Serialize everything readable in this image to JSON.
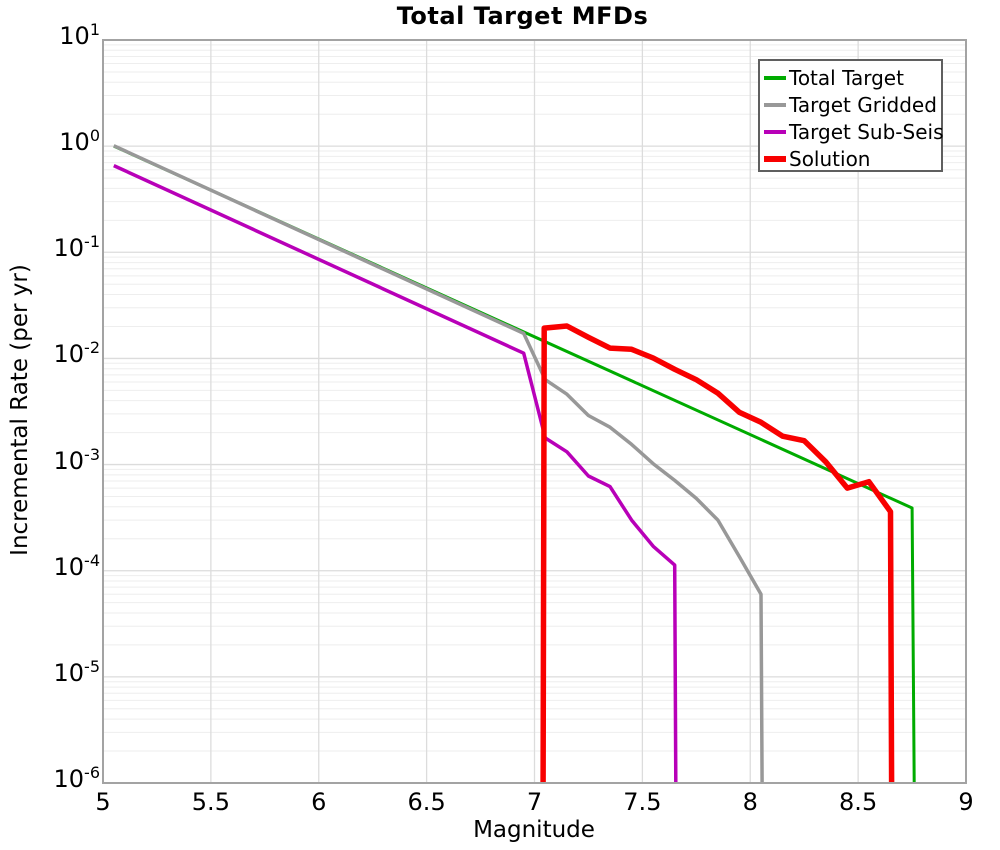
{
  "chart_data": {
    "type": "line",
    "title": "Total Target MFDs",
    "xlabel": "Magnitude",
    "ylabel": "Incremental Rate (per yr)",
    "x_axis": {
      "min": 5,
      "max": 9,
      "tick_values": [
        5,
        5.5,
        6,
        6.5,
        7,
        7.5,
        8,
        8.5,
        9
      ],
      "tick_labels": [
        "5",
        "5.5",
        "6",
        "6.5",
        "7",
        "7.5",
        "8",
        "8.5",
        "9"
      ]
    },
    "y_axis": {
      "scale": "log",
      "min_exponent": -6,
      "max_exponent": 1,
      "tick_base": "10",
      "tick_exponents": [
        "1",
        "0",
        "-1",
        "-2",
        "-3",
        "-4",
        "-5",
        "-6"
      ]
    },
    "grid": {
      "major_color": "#dcdcdc",
      "minor_color": "#eeeeee",
      "frame_color": "#a3a3a3",
      "background": "#ffffff"
    },
    "legend": {
      "position": "top-right",
      "border_color": "#5f5f5f"
    },
    "series": [
      {
        "name": "Total Target",
        "color": "#00ab00",
        "width": 3,
        "points": [
          [
            5.05,
            1.0
          ],
          [
            8.75,
            0.00039
          ],
          [
            8.76,
            1e-06
          ]
        ]
      },
      {
        "name": "Target Gridded",
        "color": "#989898",
        "width": 3.5,
        "points": [
          [
            5.05,
            1.01
          ],
          [
            6.95,
            0.0172
          ],
          [
            7.05,
            0.0063
          ],
          [
            7.15,
            0.0046
          ],
          [
            7.25,
            0.0029
          ],
          [
            7.35,
            0.00225
          ],
          [
            7.45,
            0.00155
          ],
          [
            7.55,
            0.00102
          ],
          [
            7.65,
            0.00071
          ],
          [
            7.75,
            0.00048
          ],
          [
            7.85,
            0.0003
          ],
          [
            7.95,
            0.000135
          ],
          [
            8.05,
            6e-05
          ],
          [
            8.055,
            1e-06
          ]
        ]
      },
      {
        "name": "Target Sub-Seis",
        "color": "#b800b8",
        "width": 3.5,
        "points": [
          [
            5.05,
            0.655
          ],
          [
            6.95,
            0.0112
          ],
          [
            7.05,
            0.00178
          ],
          [
            7.15,
            0.00132
          ],
          [
            7.25,
            0.00078
          ],
          [
            7.35,
            0.00062
          ],
          [
            7.45,
            0.0003
          ],
          [
            7.55,
            0.00017
          ],
          [
            7.65,
            0.000113
          ],
          [
            7.655,
            1e-06
          ]
        ]
      },
      {
        "name": "Solution",
        "color": "#f80000",
        "width": 5.5,
        "points": [
          [
            7.04,
            1e-06
          ],
          [
            7.045,
            0.0193
          ],
          [
            7.15,
            0.0202
          ],
          [
            7.25,
            0.0158
          ],
          [
            7.35,
            0.0125
          ],
          [
            7.45,
            0.0122
          ],
          [
            7.55,
            0.0101
          ],
          [
            7.65,
            0.0079
          ],
          [
            7.75,
            0.0063
          ],
          [
            7.85,
            0.0047
          ],
          [
            7.95,
            0.0031
          ],
          [
            8.05,
            0.0025
          ],
          [
            8.15,
            0.00185
          ],
          [
            8.25,
            0.00168
          ],
          [
            8.35,
            0.00106
          ],
          [
            8.45,
            0.0006
          ],
          [
            8.55,
            0.00069
          ],
          [
            8.65,
            0.00036
          ],
          [
            8.655,
            1e-06
          ]
        ]
      }
    ]
  }
}
